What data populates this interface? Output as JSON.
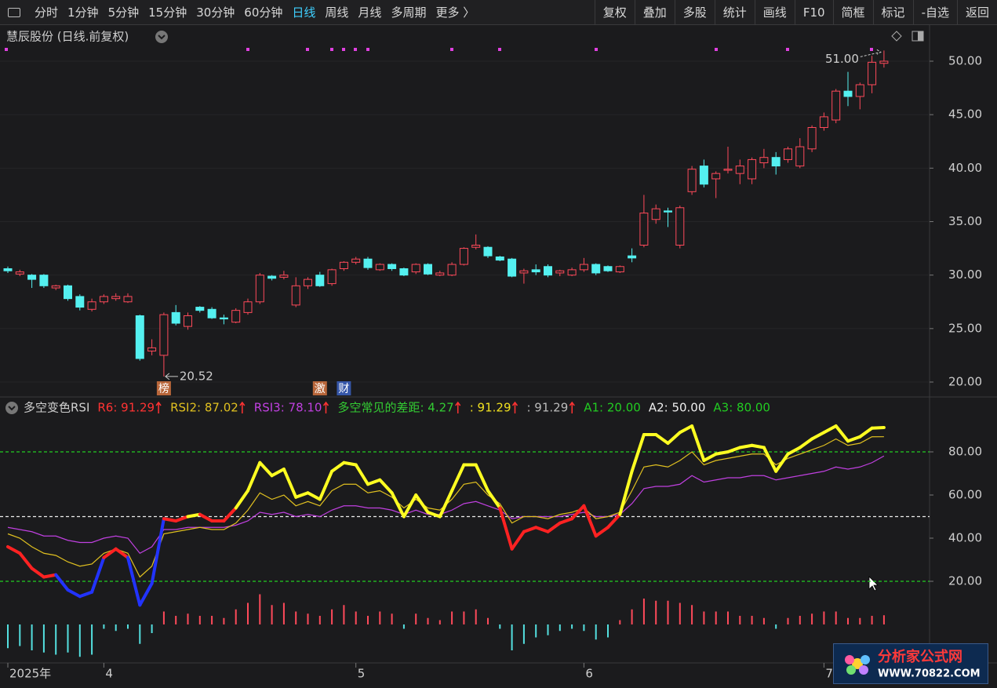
{
  "toolbar": {
    "left": [
      "分时",
      "1分钟",
      "5分钟",
      "15分钟",
      "30分钟",
      "60分钟",
      "日线",
      "周线",
      "月线",
      "多周期",
      "更多 〉"
    ],
    "active": "日线",
    "right": [
      "复权",
      "叠加",
      "多股",
      "统计",
      "画线",
      "F10",
      "简框",
      "标记",
      "-自选",
      "返回"
    ]
  },
  "watermark": {
    "title": "分析家公式网",
    "url": "WWW.70822.COM"
  },
  "chart_data": [
    {
      "type": "candlestick",
      "title": "慧辰股份 (日线.前复权)",
      "categories": [
        "2025年",
        null,
        null,
        null,
        null,
        null,
        null,
        null,
        "4",
        null,
        null,
        null,
        null,
        null,
        null,
        null,
        null,
        null,
        null,
        null,
        null,
        null,
        null,
        null,
        null,
        null,
        null,
        null,
        null,
        "5",
        null,
        null,
        null,
        null,
        null,
        null,
        null,
        null,
        null,
        null,
        null,
        null,
        null,
        null,
        null,
        null,
        null,
        null,
        "6",
        null,
        null,
        null,
        null,
        null,
        null,
        null,
        null,
        null,
        null,
        null,
        null,
        null,
        null,
        null,
        null,
        null,
        null,
        null,
        "7",
        null,
        null,
        null,
        null,
        null
      ],
      "open": [
        30.6,
        30.1,
        30.0,
        30.0,
        28.8,
        29.0,
        28.0,
        26.8,
        27.5,
        27.8,
        27.5,
        26.2,
        22.9,
        22.5,
        26.5,
        25.2,
        27.0,
        26.8,
        26.0,
        25.6,
        26.5,
        27.5,
        29.9,
        29.8,
        27.2,
        29.0,
        30.0,
        29.2,
        30.6,
        31.2,
        31.5,
        30.5,
        31.0,
        30.6,
        30.3,
        31.0,
        30.0,
        30.0,
        31.0,
        32.6,
        32.6,
        31.7,
        31.5,
        30.2,
        30.5,
        30.8,
        30.2,
        30.0,
        30.5,
        31.0,
        30.8,
        30.3,
        31.8,
        32.8,
        35.2,
        36.0,
        32.8,
        37.8,
        40.2,
        39.0,
        39.8,
        39.5,
        39.0,
        40.5,
        41.0,
        40.8,
        40.2,
        41.8,
        43.8,
        44.5,
        47.2,
        46.7,
        47.8,
        49.8
      ],
      "close": [
        30.4,
        30.3,
        29.6,
        29.0,
        29.0,
        27.8,
        27.0,
        27.5,
        28.0,
        28.0,
        28.0,
        22.2,
        23.2,
        26.3,
        25.5,
        26.2,
        26.7,
        26.0,
        25.9,
        26.7,
        27.5,
        30.0,
        29.7,
        30.0,
        29.0,
        29.6,
        29.0,
        30.5,
        31.2,
        31.5,
        30.7,
        31.0,
        30.6,
        30.0,
        31.0,
        30.1,
        30.2,
        31.0,
        32.5,
        32.8,
        31.8,
        31.4,
        29.9,
        30.4,
        30.3,
        30.0,
        30.4,
        30.5,
        31.0,
        30.2,
        30.4,
        30.8,
        31.6,
        35.8,
        36.2,
        35.9,
        36.3,
        39.9,
        38.5,
        39.5,
        39.9,
        40.2,
        40.8,
        41.0,
        40.2,
        41.8,
        42.0,
        43.8,
        44.8,
        47.2,
        46.7,
        47.8,
        49.9,
        50.0
      ],
      "high": [
        30.8,
        30.5,
        30.1,
        30.1,
        29.1,
        29.1,
        28.2,
        27.8,
        28.2,
        28.3,
        28.3,
        26.3,
        24.0,
        26.5,
        27.2,
        26.5,
        27.1,
        27.0,
        26.3,
        26.9,
        27.8,
        30.2,
        30.0,
        30.4,
        29.8,
        29.8,
        30.3,
        30.6,
        31.3,
        31.7,
        31.7,
        31.1,
        31.1,
        30.7,
        31.1,
        31.1,
        30.4,
        31.2,
        32.6,
        33.8,
        32.7,
        31.8,
        31.6,
        30.6,
        31.0,
        31.0,
        30.5,
        30.7,
        31.6,
        31.1,
        30.9,
        30.9,
        32.5,
        37.5,
        36.6,
        36.3,
        36.5,
        40.2,
        40.8,
        39.7,
        42.0,
        40.8,
        41.0,
        41.8,
        41.5,
        42.0,
        42.8,
        44.0,
        45.2,
        47.4,
        49.0,
        48.0,
        50.5,
        51.0
      ],
      "low": [
        30.2,
        29.9,
        28.8,
        28.8,
        28.6,
        27.6,
        26.7,
        26.6,
        27.3,
        27.6,
        27.4,
        22.0,
        22.5,
        20.52,
        25.3,
        24.9,
        26.5,
        25.9,
        25.4,
        25.5,
        26.3,
        27.3,
        29.5,
        29.6,
        27.0,
        28.7,
        28.9,
        29.0,
        30.4,
        31.0,
        30.5,
        30.4,
        30.4,
        29.9,
        30.1,
        30.0,
        29.9,
        29.9,
        30.9,
        32.4,
        31.6,
        31.3,
        29.8,
        29.2,
        30.0,
        29.8,
        29.9,
        29.9,
        30.3,
        30.0,
        30.3,
        30.2,
        31.2,
        32.6,
        34.8,
        34.5,
        32.5,
        37.5,
        38.2,
        37.2,
        39.5,
        38.5,
        38.5,
        40.0,
        39.4,
        40.5,
        40.0,
        41.5,
        43.5,
        44.2,
        45.8,
        45.5,
        47.0,
        49.4
      ],
      "up_color": "#ff4a5a",
      "down_color": "#54f0f0",
      "max_label": "51.00",
      "min_label": "20.52",
      "events": [
        null,
        null,
        null,
        null,
        null,
        null,
        null,
        null,
        null,
        null,
        null,
        null,
        null,
        {
          "label": "榜",
          "color": "#b8663a"
        },
        null,
        null,
        null,
        null,
        null,
        null,
        null,
        null,
        null,
        null,
        null,
        null,
        {
          "label": "激",
          "color": "#b8663a"
        },
        null,
        {
          "label": "财",
          "color": "#3556a8"
        },
        null,
        null,
        null,
        null,
        null,
        null,
        null,
        null,
        null,
        null,
        null,
        null,
        null,
        null,
        null,
        null,
        null,
        null,
        null,
        null,
        null,
        null,
        null,
        null,
        null,
        null,
        null,
        null,
        null,
        null,
        null,
        null,
        null,
        null,
        null,
        null,
        null,
        null,
        null,
        null,
        null,
        null,
        null
      ],
      "ylim": [
        18.68,
        53.08
      ],
      "yticks": [
        {
          "value": 20,
          "label": "20.00"
        },
        {
          "value": 25,
          "label": "25.00"
        },
        {
          "value": 30,
          "label": "30.00"
        },
        {
          "value": 35,
          "label": "35.00"
        },
        {
          "value": 40,
          "label": "40.00"
        },
        {
          "value": 45,
          "label": "45.00"
        },
        {
          "value": 50,
          "label": "50.00"
        }
      ],
      "grid": true
    },
    {
      "type": "line",
      "title": "多空变色RSI",
      "series": [
        {
          "name": "R6: 91.29",
          "color": "#ff3333",
          "band_colors": [
            "#2233ff",
            "#ff2222",
            "#ffff22"
          ],
          "width": 4,
          "values": [
            36,
            33,
            26,
            22,
            23,
            16,
            13,
            15,
            31,
            35,
            31,
            9,
            19,
            49,
            48,
            50,
            51,
            48,
            48,
            54,
            62,
            75,
            69,
            72,
            59,
            61,
            58,
            71,
            75,
            74,
            65,
            67,
            61,
            50,
            60,
            52,
            50,
            62,
            74,
            74,
            62,
            54,
            35,
            43,
            45,
            43,
            47,
            49,
            55,
            41,
            45,
            51,
            71,
            88,
            88,
            84,
            89,
            92,
            76,
            79,
            80,
            82,
            83,
            82,
            71,
            79,
            82,
            86,
            89,
            92,
            85,
            87,
            91,
            91.29
          ]
        },
        {
          "name": "RSI2: 87.02",
          "color": "#e0c020",
          "width": 1.2,
          "values": [
            42,
            40,
            36,
            33,
            32,
            29,
            27,
            28,
            33,
            35,
            33,
            22,
            27,
            42,
            43,
            44,
            45,
            44,
            44,
            47,
            53,
            61,
            58,
            60,
            55,
            57,
            55,
            62,
            65,
            65,
            61,
            62,
            59,
            54,
            58,
            54,
            53,
            58,
            65,
            66,
            60,
            56,
            47,
            50,
            50,
            49,
            51,
            52,
            54,
            49,
            50,
            52,
            62,
            73,
            74,
            73,
            76,
            80,
            74,
            76,
            77,
            78,
            79,
            79,
            74,
            77,
            79,
            81,
            83,
            86,
            83,
            84,
            87,
            87.02
          ]
        },
        {
          "name": "RSI3: 78.10",
          "color": "#c040e0",
          "width": 1.2,
          "values": [
            45,
            44,
            43,
            41,
            41,
            39,
            38,
            38,
            40,
            41,
            40,
            33,
            36,
            44,
            44,
            45,
            45,
            45,
            45,
            46,
            48,
            52,
            51,
            52,
            50,
            51,
            50,
            53,
            55,
            55,
            54,
            54,
            53,
            51,
            53,
            51,
            51,
            53,
            56,
            57,
            55,
            53,
            49,
            50,
            50,
            50,
            50,
            51,
            52,
            50,
            50,
            51,
            56,
            63,
            64,
            64,
            65,
            69,
            66,
            67,
            68,
            68,
            69,
            69,
            67,
            68,
            69,
            70,
            71,
            73,
            72,
            73,
            75,
            78.1
          ]
        }
      ],
      "histogram": {
        "name": "多空常见的差距: 4.27",
        "color": "#33cc33",
        "up_color": "#ff4a5a",
        "down_color": "#54e0e0",
        "values": [
          -11,
          -10,
          -12,
          -13,
          -14,
          -13,
          -15,
          -14,
          -2,
          -3,
          -2,
          -9,
          -4,
          6,
          4,
          5,
          4,
          4,
          3,
          7,
          10,
          14,
          9,
          10,
          6,
          5,
          4,
          7,
          9,
          6,
          4,
          6,
          5,
          -2,
          5,
          3,
          2,
          6,
          6,
          7,
          3,
          -2,
          -12,
          -9,
          -6,
          -5,
          -3,
          -2,
          -3,
          -7,
          -6,
          2,
          7,
          12,
          11,
          11,
          10,
          9,
          6,
          6,
          6,
          4,
          4,
          3,
          -2,
          3,
          4,
          5,
          6,
          6,
          3,
          3,
          4,
          4.27
        ]
      },
      "legend_extra": [
        {
          "name": ": 91.29",
          "color": "#f0e020"
        },
        {
          "name": ": 91.29",
          "color": "#bbbbbb"
        }
      ],
      "hlines": [
        {
          "name": "A1: 20.00",
          "value": 20,
          "color": "#22cc22"
        },
        {
          "name": "A2: 50.00",
          "value": 50,
          "color": "#eeeeee"
        },
        {
          "name": "A3: 80.00",
          "value": 80,
          "color": "#22cc22"
        }
      ],
      "ylim": [
        -17.82,
        104.73
      ],
      "yticks": [
        {
          "value": 20,
          "label": "20.00"
        },
        {
          "value": 40,
          "label": "40.00"
        },
        {
          "value": 60,
          "label": "60.00"
        },
        {
          "value": 80,
          "label": "80.00"
        }
      ]
    }
  ]
}
